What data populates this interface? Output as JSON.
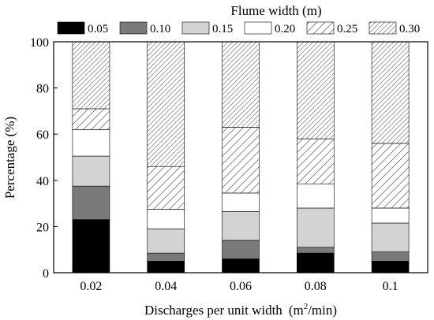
{
  "chart_data": {
    "type": "bar",
    "stacked": true,
    "legend_title": "Flume width (m)",
    "legend_placement": "top",
    "xlabel": "Discharges per unit width",
    "xlabel_unit": {
      "base": "(m",
      "sup": "2",
      "tail": "/min)"
    },
    "ylabel": "Percentage  (%)",
    "ylim": [
      0,
      100
    ],
    "yticks": [
      "0",
      "20",
      "40",
      "60",
      "80",
      "100"
    ],
    "categories": [
      "0.02",
      "0.04",
      "0.06",
      "0.08",
      "0.1"
    ],
    "grid": false,
    "series": [
      {
        "name": "0.05",
        "pattern": "solid-black",
        "values": [
          23,
          5,
          6,
          8.5,
          5
        ]
      },
      {
        "name": "0.10",
        "pattern": "solid-darkgray",
        "values": [
          14.5,
          3.5,
          8,
          2.5,
          4
        ]
      },
      {
        "name": "0.15",
        "pattern": "solid-lightgray",
        "values": [
          13,
          10.5,
          12.5,
          17,
          12.5
        ]
      },
      {
        "name": "0.20",
        "pattern": "solid-white",
        "values": [
          11.5,
          8.5,
          8,
          10.5,
          6.5
        ]
      },
      {
        "name": "0.25",
        "pattern": "sparse-hatch",
        "values": [
          9,
          18.5,
          28.5,
          19.5,
          28
        ]
      },
      {
        "name": "0.30",
        "pattern": "dense-hatch",
        "values": [
          29,
          54,
          37,
          42,
          44
        ]
      }
    ],
    "colors": {
      "0.05": "#000000",
      "0.10": "#7a7a7a",
      "0.15": "#d3d3d3",
      "0.20": "#ffffff"
    }
  }
}
